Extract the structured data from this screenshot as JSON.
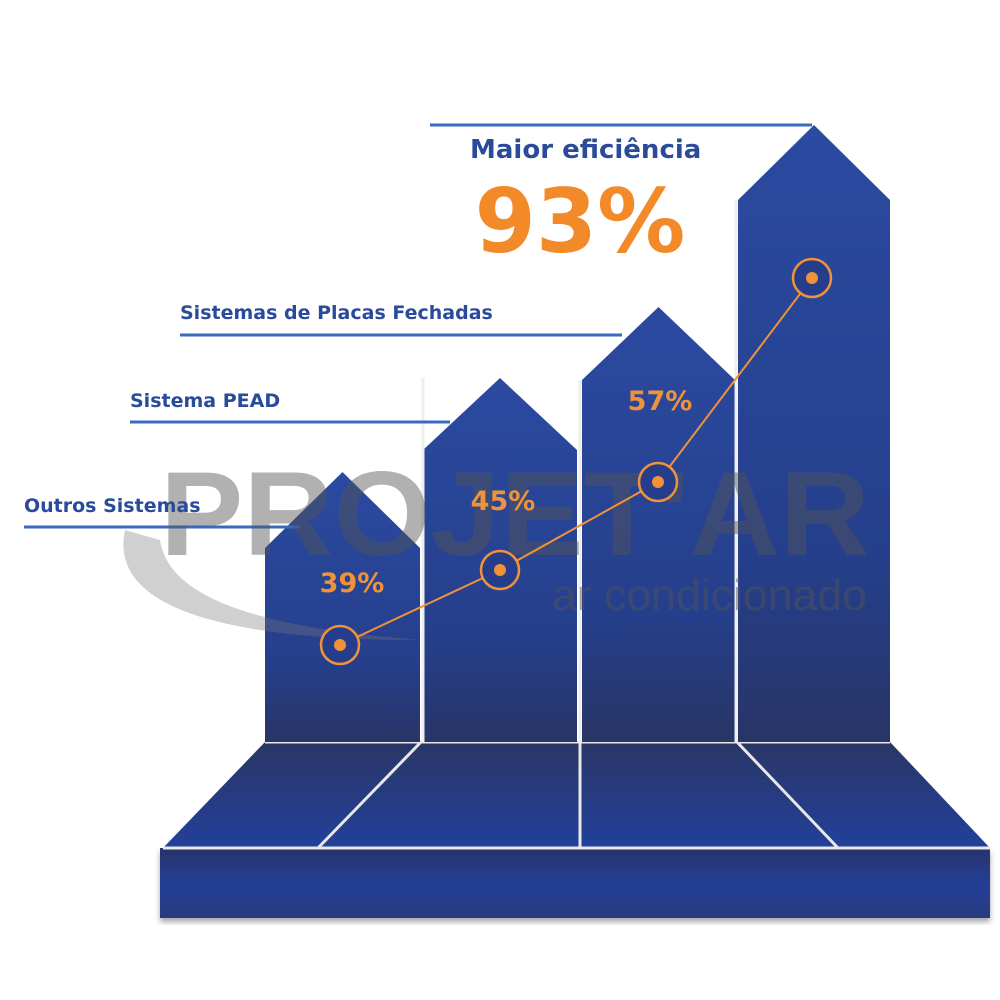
{
  "chart_data": {
    "type": "bar",
    "categories": [
      "Outros Sistemas",
      "Sistema PEAD",
      "Sistemas de Placas Fechadas",
      "Maior eficiência"
    ],
    "values": [
      39,
      45,
      57,
      93
    ],
    "value_labels": [
      "39%",
      "45%",
      "57%",
      "93%"
    ],
    "unit": "%",
    "title": "",
    "xlabel": "",
    "ylabel": "",
    "grid": false,
    "legend": "none",
    "colors": {
      "bar": "#233f8f",
      "accent": "#f0923a",
      "label": "#2a4a9a",
      "line": "#3a6ac0"
    }
  },
  "watermark": {
    "brand": "PROJET'AR",
    "tagline": "ar condicionado"
  }
}
